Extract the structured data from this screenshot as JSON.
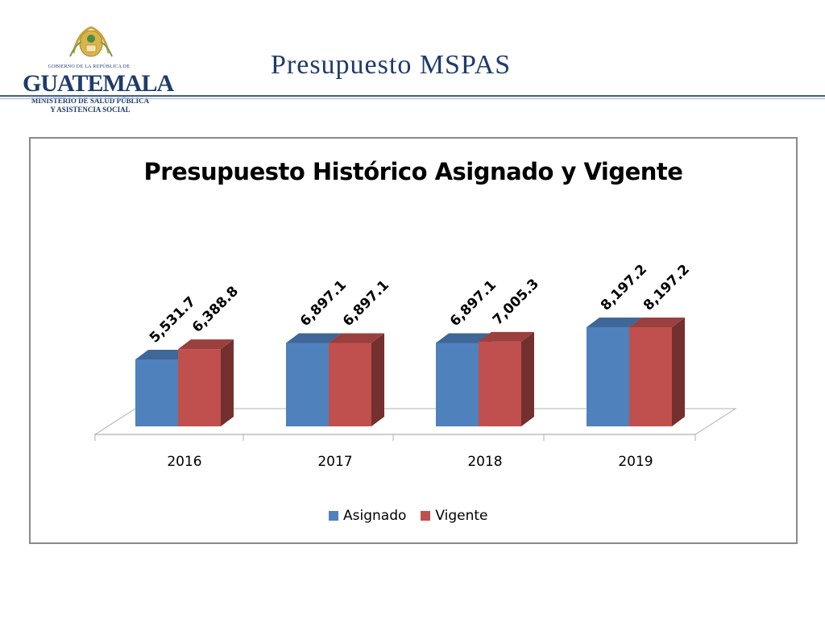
{
  "header": {
    "title": "Presupuesto MSPAS",
    "logo": {
      "government": "GOBIERNO DE LA REPÚBLICA DE",
      "country": "GUATEMALA",
      "ministry_line1": "MINISTERIO DE SALUD PÚBLICA",
      "ministry_line2": "Y ASISTENCIA SOCIAL",
      "emblem_icon": "coat-of-arms-icon"
    }
  },
  "chart_data": {
    "type": "bar",
    "title": "Presupuesto Histórico Asignado y Vigente",
    "categories": [
      "2016",
      "2017",
      "2018",
      "2019"
    ],
    "series": [
      {
        "name": "Asignado",
        "values": [
          5531.7,
          6897.1,
          6897.1,
          8197.2
        ],
        "labels": [
          "5,531.7",
          "6,897.1",
          "6,897.1",
          "8,197.2"
        ],
        "color": "#4f81bd"
      },
      {
        "name": "Vigente",
        "values": [
          6388.8,
          6897.1,
          7005.3,
          8197.2
        ],
        "labels": [
          "6,388.8",
          "6,897.1",
          "7,005.3",
          "8,197.2"
        ],
        "color": "#c0504d"
      }
    ],
    "legend_position": "bottom",
    "grid": false,
    "three_d": true
  }
}
